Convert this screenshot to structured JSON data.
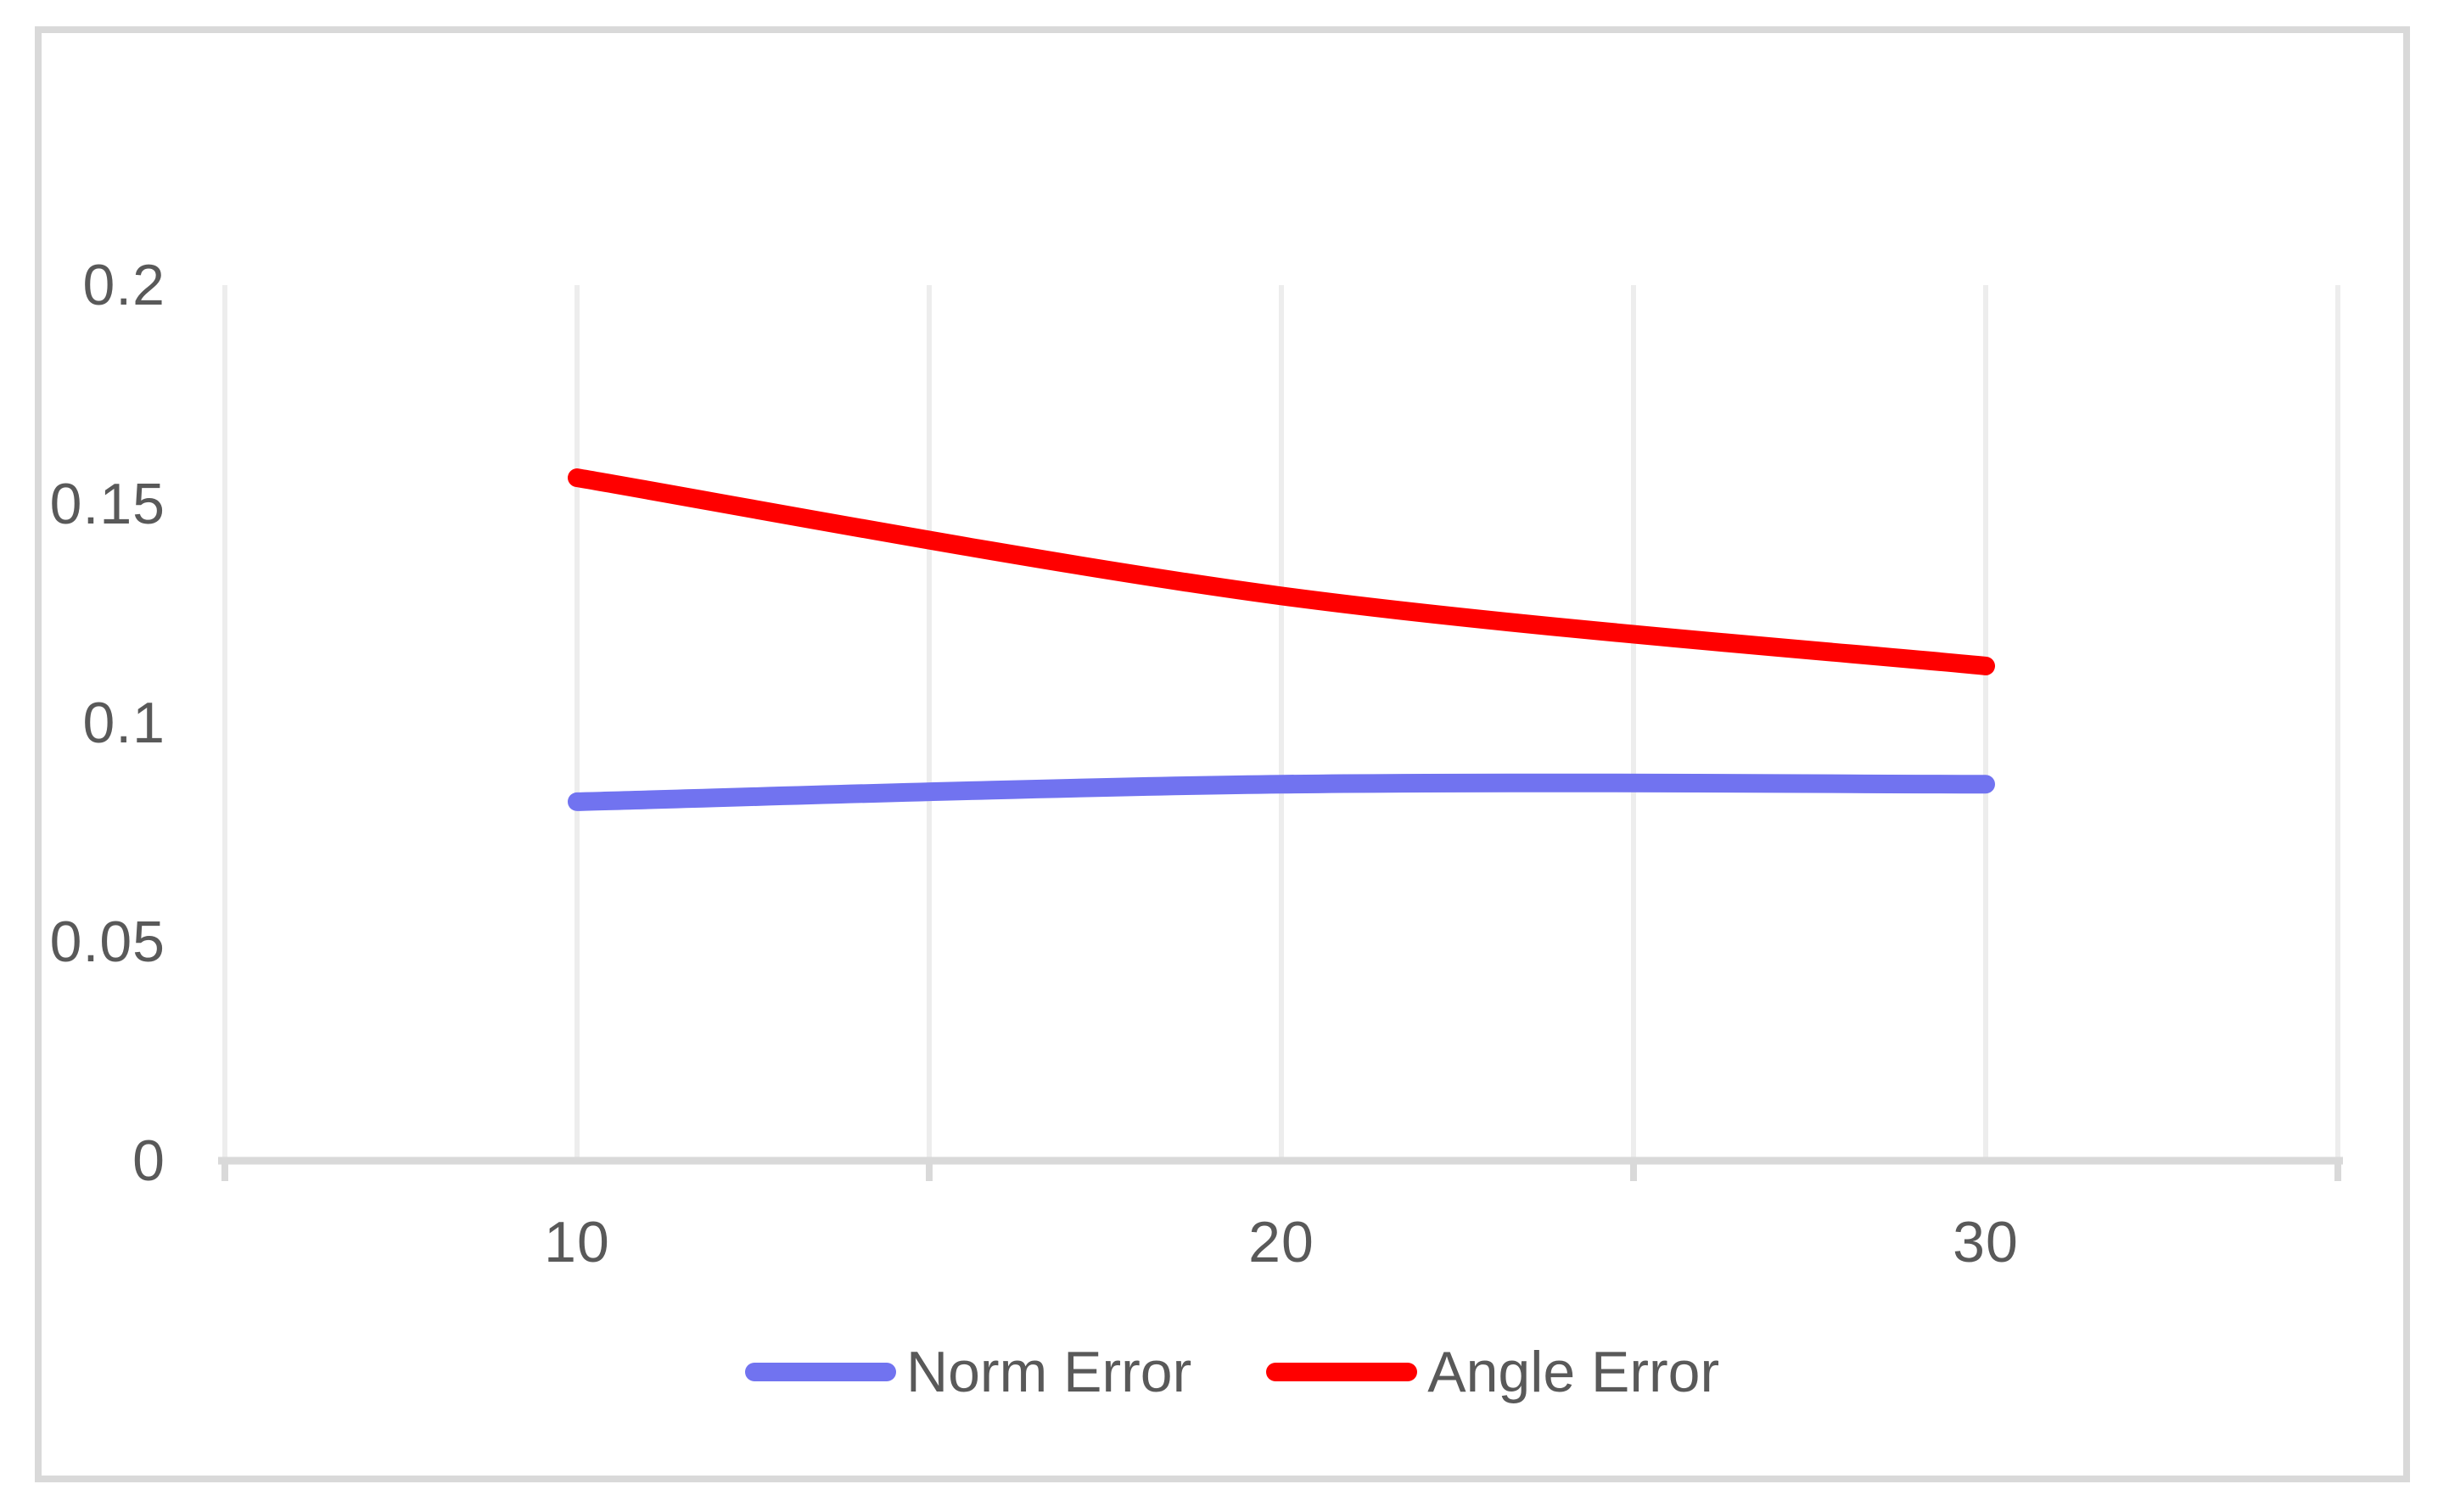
{
  "chart": {
    "title": "",
    "background": "#FFFFFF",
    "frame_color": "#D9D9D9",
    "axis_color": "#D9D9D9",
    "gridline_color": "#EDEDED",
    "tick_text_color": "#595959"
  },
  "chart_data": {
    "type": "line",
    "x": [
      10,
      20,
      30
    ],
    "x_tick_labels": [
      "10",
      "20",
      "30"
    ],
    "y_tick_labels": [
      "0.2",
      "0.15",
      "0.1",
      "0.05",
      "0"
    ],
    "xlim": [
      5,
      35
    ],
    "ylim": [
      0,
      0.2
    ],
    "y_major_unit": 0.05,
    "x_gridline_values": [
      5,
      10,
      15,
      20,
      25,
      30,
      35
    ],
    "x_tickmark_values": [
      5,
      15,
      25,
      35
    ],
    "grid": "vertical-only",
    "legend_position": "bottom",
    "series": [
      {
        "name": "Norm Error",
        "color": "#7173F0",
        "values": [
          0.082,
          0.086,
          0.086
        ]
      },
      {
        "name": "Angle Error",
        "color": "#FF0000",
        "values": [
          0.156,
          0.129,
          0.113
        ]
      }
    ]
  }
}
